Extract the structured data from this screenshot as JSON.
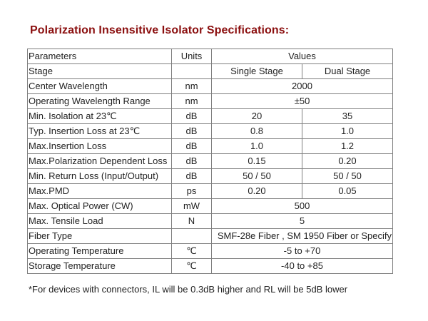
{
  "title": "Polarization Insensitive Isolator Specifications:",
  "table": {
    "header": {
      "parameter": "Parameters",
      "units": "Units",
      "values": "Values"
    },
    "stage_row": {
      "parameter": "Stage",
      "units": "",
      "single": "Single Stage",
      "dual": "Dual Stage"
    },
    "rows": [
      {
        "parameter": "Center Wavelength",
        "units": "nm",
        "value": "2000"
      },
      {
        "parameter": "Operating Wavelength Range",
        "units": "nm",
        "value": "±50"
      },
      {
        "parameter": "Min. Isolation at 23℃",
        "units": "dB",
        "single": "20",
        "dual": "35"
      },
      {
        "parameter": "Typ. Insertion Loss at 23℃",
        "units": "dB",
        "single": "0.8",
        "dual": "1.0"
      },
      {
        "parameter": "Max.Insertion Loss",
        "units": "dB",
        "single": "1.0",
        "dual": "1.2"
      },
      {
        "parameter": "Max.Polarization Dependent Loss",
        "units": "dB",
        "single": "0.15",
        "dual": "0.20"
      },
      {
        "parameter": "Min. Return Loss (Input/Output)",
        "units": "dB",
        "single": "50 / 50",
        "dual": "50 / 50"
      },
      {
        "parameter": "Max.PMD",
        "units": "ps",
        "single": "0.20",
        "dual": "0.05"
      },
      {
        "parameter": "Max. Optical Power (CW)",
        "units": "mW",
        "value": "500"
      },
      {
        "parameter": "Max. Tensile Load",
        "units": "N",
        "value": "5"
      },
      {
        "parameter": "Fiber Type",
        "units": "",
        "value": "SMF-28e Fiber , SM 1950 Fiber or Specify"
      },
      {
        "parameter": "Operating Temperature",
        "units": "℃",
        "value": "-5 to +70"
      },
      {
        "parameter": "Storage Temperature",
        "units": "℃",
        "value": "-40 to +85"
      }
    ]
  },
  "footnote": "*For devices with connectors, IL will be 0.3dB higher and RL will be 5dB lower"
}
